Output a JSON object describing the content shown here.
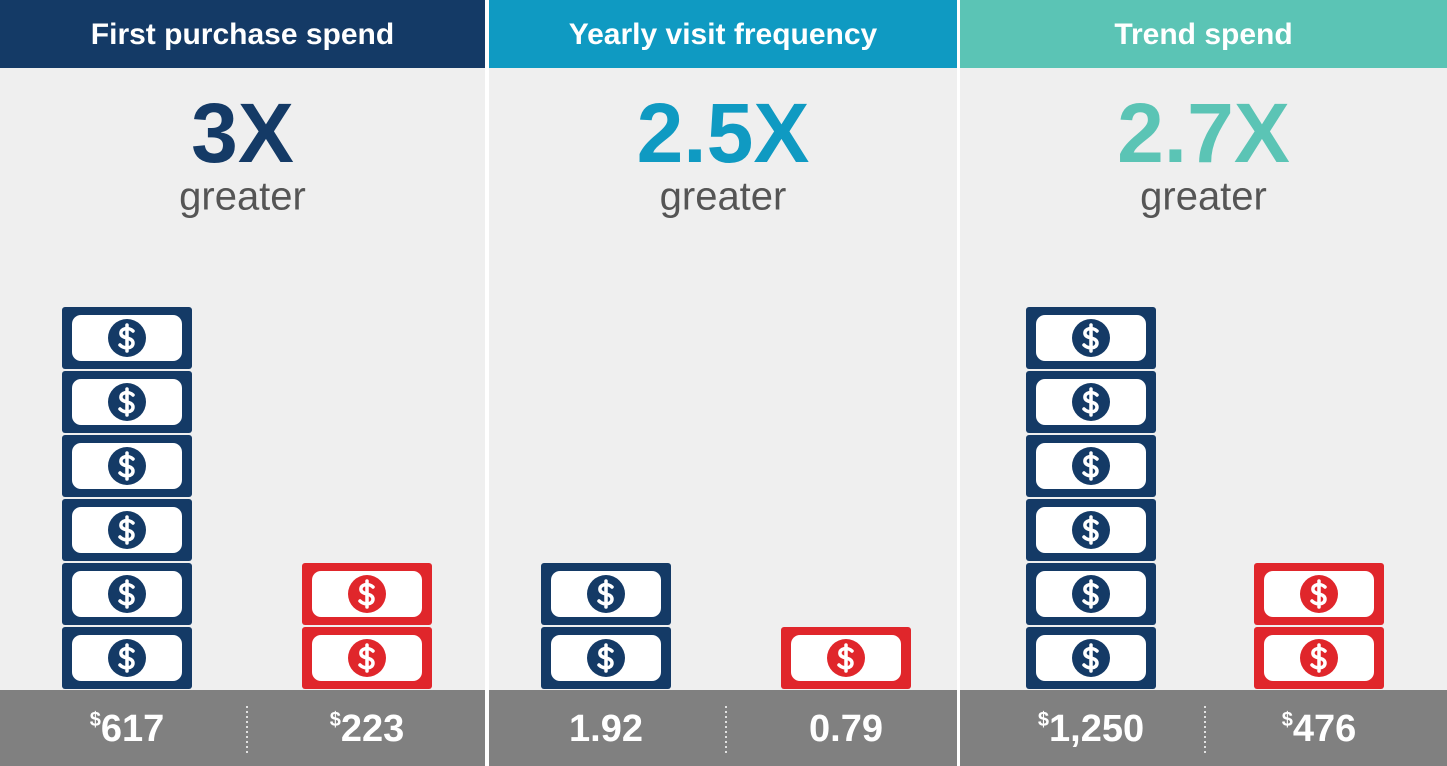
{
  "panels": [
    {
      "header": "First purchase spend",
      "multiplier": "3X",
      "word": "greater",
      "left": {
        "symbol": "$",
        "amount": "617"
      },
      "right": {
        "symbol": "$",
        "amount": "223"
      }
    },
    {
      "header": "Yearly visit frequency",
      "multiplier": "2.5X",
      "word": "greater",
      "left": {
        "amount": "1.92"
      },
      "right": {
        "amount": "0.79"
      }
    },
    {
      "header": "Trend spend",
      "multiplier": "2.7X",
      "word": "greater",
      "left": {
        "symbol": "$",
        "amount": "1,250"
      },
      "right": {
        "symbol": "$",
        "amount": "476"
      }
    }
  ]
}
